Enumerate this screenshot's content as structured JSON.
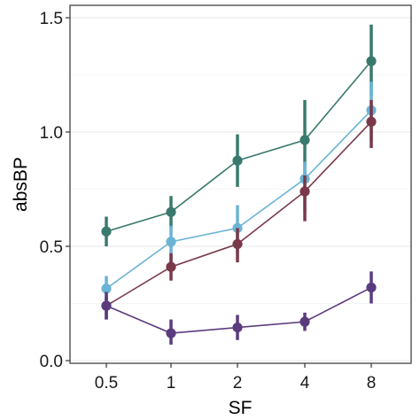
{
  "chart_data": {
    "type": "line",
    "title": "",
    "xlabel": "SF",
    "ylabel": "absBP",
    "categories": [
      "0.5",
      "1",
      "2",
      "4",
      "8"
    ],
    "ylim": [
      0.0,
      1.5
    ],
    "yticks": [
      "0.0",
      "0.5",
      "1.0",
      "1.5"
    ],
    "grid": "horizontal major lines",
    "legend": "none",
    "series": [
      {
        "color": "#3a7a6e",
        "values": [
          0.565,
          0.65,
          0.875,
          0.965,
          1.31
        ],
        "err_low": [
          0.5,
          0.58,
          0.76,
          0.8,
          1.16
        ],
        "err_high": [
          0.63,
          0.72,
          0.99,
          1.14,
          1.47
        ]
      },
      {
        "color": "#6ab4d6",
        "values": [
          0.315,
          0.52,
          0.58,
          0.795,
          1.095
        ],
        "err_low": [
          0.26,
          0.42,
          0.47,
          0.65,
          0.96
        ],
        "err_high": [
          0.37,
          0.59,
          0.68,
          0.87,
          1.22
        ]
      },
      {
        "color": "#7a3848",
        "values": [
          0.24,
          0.41,
          0.51,
          0.74,
          1.045
        ],
        "err_low": [
          0.18,
          0.35,
          0.43,
          0.61,
          0.93
        ],
        "err_high": [
          0.28,
          0.47,
          0.58,
          0.81,
          1.14
        ]
      },
      {
        "color": "#5a3c7e",
        "values": [
          0.24,
          0.12,
          0.145,
          0.17,
          0.32
        ],
        "err_low": [
          0.18,
          0.07,
          0.09,
          0.13,
          0.25
        ],
        "err_high": [
          0.3,
          0.18,
          0.2,
          0.21,
          0.39
        ]
      }
    ]
  }
}
